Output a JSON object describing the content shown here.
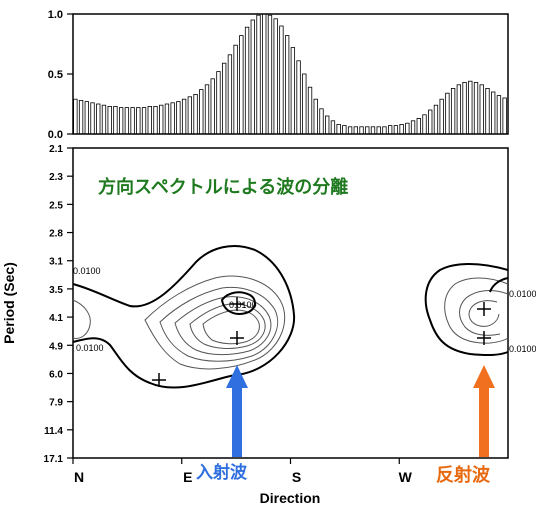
{
  "chart_data": [
    {
      "type": "bar",
      "ylim": [
        0,
        1.0
      ],
      "yticks": [
        "1.0",
        "0.5",
        "0.0"
      ],
      "categories_note": "",
      "values": [
        0.29,
        0.28,
        0.27,
        0.26,
        0.25,
        0.24,
        0.23,
        0.23,
        0.22,
        0.22,
        0.22,
        0.22,
        0.22,
        0.23,
        0.23,
        0.24,
        0.25,
        0.26,
        0.27,
        0.29,
        0.31,
        0.33,
        0.37,
        0.41,
        0.46,
        0.52,
        0.59,
        0.66,
        0.74,
        0.82,
        0.89,
        0.95,
        0.99,
        1.0,
        0.99,
        0.96,
        0.9,
        0.82,
        0.72,
        0.61,
        0.5,
        0.39,
        0.29,
        0.21,
        0.15,
        0.11,
        0.08,
        0.07,
        0.06,
        0.06,
        0.06,
        0.06,
        0.06,
        0.06,
        0.06,
        0.07,
        0.07,
        0.08,
        0.09,
        0.11,
        0.13,
        0.16,
        0.2,
        0.24,
        0.29,
        0.34,
        0.38,
        0.41,
        0.43,
        0.44,
        0.43,
        0.41,
        0.38,
        0.35,
        0.32,
        0.3
      ],
      "color": "#000000"
    },
    {
      "type": "contour",
      "xlabel": "Direction",
      "ylabel": "Period (Sec)",
      "xticks": [
        "N",
        "E",
        "S",
        "W"
      ],
      "yticks": [
        "2.1",
        "2.3",
        "2.5",
        "2.8",
        "3.1",
        "3.5",
        "4.1",
        "4.9",
        "6.0",
        "7.9",
        "11.4",
        "17.1"
      ],
      "contour_labels": [
        "0.0100",
        "0.0100",
        "0.0100",
        "0.0100",
        "0.0100"
      ],
      "peaks": [
        {
          "direction_deg": 145,
          "period": 4.9,
          "label": "入射波"
        },
        {
          "direction_deg": 345,
          "period": 4.9,
          "label": "反射波"
        }
      ],
      "title": "方向スペクトルによる波の分離",
      "annotations": [
        "入射波",
        "反射波"
      ],
      "colors": {
        "title": "#1f7a1f",
        "incident_arrow": "#2f6fe0",
        "reflected_arrow": "#f07020",
        "reflected_text": "#e86a10"
      }
    }
  ]
}
